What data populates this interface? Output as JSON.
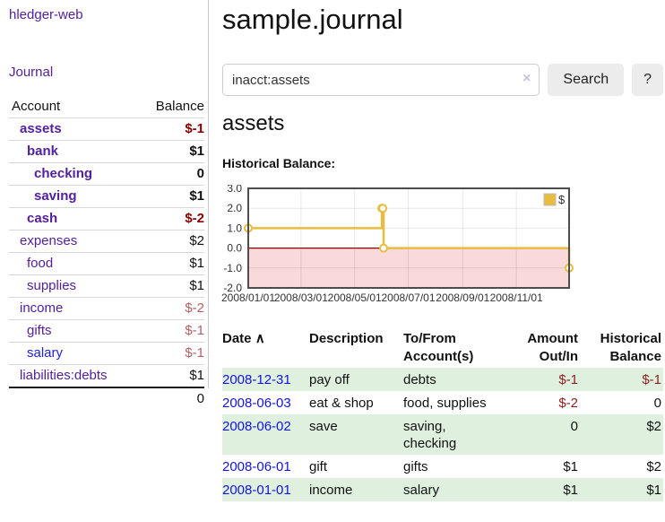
{
  "app": {
    "title": "hledger-web"
  },
  "sidebar": {
    "nav": {
      "journal_label": "Journal"
    },
    "table": {
      "account_header": "Account",
      "balance_header": "Balance"
    },
    "accounts": [
      {
        "name": "assets",
        "level": 1,
        "bold": true,
        "balance": "$-1"
      },
      {
        "name": "bank",
        "level": 2,
        "bold": true,
        "balance": "$1"
      },
      {
        "name": "checking",
        "level": 3,
        "bold": true,
        "balance": "0"
      },
      {
        "name": "saving",
        "level": 3,
        "bold": true,
        "balance": "$1"
      },
      {
        "name": "cash",
        "level": 2,
        "bold": true,
        "balance": "$-2"
      },
      {
        "name": "expenses",
        "level": 1,
        "bold": false,
        "balance": "$2"
      },
      {
        "name": "food",
        "level": 2,
        "bold": false,
        "balance": "$1"
      },
      {
        "name": "supplies",
        "level": 2,
        "bold": false,
        "balance": "$1"
      },
      {
        "name": "income",
        "level": 1,
        "bold": false,
        "balance": "$-2"
      },
      {
        "name": "gifts",
        "level": 2,
        "bold": false,
        "balance": "$-1"
      },
      {
        "name": "salary",
        "level": 2,
        "bold": false,
        "balance": "$-1",
        "unvisited": true
      },
      {
        "name": "liabilities:debts",
        "level": 1,
        "bold": false,
        "balance": "$1"
      }
    ],
    "total": "0"
  },
  "header": {
    "title": "sample.journal"
  },
  "search": {
    "query": "inacct:assets",
    "clear_icon": "×",
    "button_label": "Search",
    "help_label": "?"
  },
  "account_page": {
    "heading": "assets",
    "chart_label": "Historical Balance:"
  },
  "chart_data": {
    "type": "line",
    "step": true,
    "title": "Historical Balance",
    "series": [
      {
        "name": "$",
        "color": "#e8bd3f",
        "points": [
          [
            "2008-01-01",
            1.0
          ],
          [
            "2008-06-01",
            2.0
          ],
          [
            "2008-06-02",
            2.0
          ],
          [
            "2008-06-03",
            0.0
          ],
          [
            "2008-12-31",
            -1.0
          ]
        ]
      }
    ],
    "x_range": [
      "2008-01-01",
      "2008-12-31"
    ],
    "x_ticks": [
      {
        "date": "2008-01-01",
        "label": "2008/01/01"
      },
      {
        "date": "2008-03-01",
        "label": "2008/03/01"
      },
      {
        "date": "2008-05-01",
        "label": "2008/05/01"
      },
      {
        "date": "2008-07-01",
        "label": "2008/07/01"
      },
      {
        "date": "2008-09-01",
        "label": "2008/09/01"
      },
      {
        "date": "2008-11-01",
        "label": "2008/11/01"
      }
    ],
    "y_ticks": [
      "3.0",
      "2.0",
      "1.0",
      "0.0",
      "-1.0",
      "-2.0"
    ],
    "ylim": [
      -2,
      3
    ],
    "grid": true,
    "legend": {
      "position": "top-right",
      "entries": [
        {
          "label": "$",
          "color": "#e8bd3f"
        }
      ]
    },
    "negative_region_fill": "#f9d9d9",
    "zero_line_color": "#8b0000"
  },
  "register": {
    "columns": [
      {
        "label": "Date"
      },
      {
        "label": "Description"
      },
      {
        "label": "To/From Account(s)"
      },
      {
        "label": "Amount Out/In"
      },
      {
        "label": "Historical Balance"
      }
    ],
    "sort_icon": "∧",
    "rows": [
      {
        "date": "2008-12-31",
        "description": "pay off",
        "accounts": "debts",
        "amount": "$-1",
        "balance": "$-1"
      },
      {
        "date": "2008-06-03",
        "description": "eat & shop",
        "accounts": "food, supplies",
        "amount": "$-2",
        "balance": "0"
      },
      {
        "date": "2008-06-02",
        "description": "save",
        "accounts": "saving, checking",
        "amount": "0",
        "balance": "$2"
      },
      {
        "date": "2008-06-01",
        "description": "gift",
        "accounts": "gifts",
        "amount": "$1",
        "balance": "$2"
      },
      {
        "date": "2008-01-01",
        "description": "income",
        "accounts": "salary",
        "amount": "$1",
        "balance": "$1"
      }
    ]
  },
  "colors": {
    "accent_purple": "#52219e",
    "link_blue": "#1414dd",
    "negative_strong": "#8b0000",
    "negative_soft": "#b16262",
    "register_negative": "#8d1f1f",
    "row_green": "#dff0df",
    "chart_line": "#e8bd3f",
    "chart_negative_fill": "#f9d9d9",
    "chart_zero_line": "#8b0000"
  }
}
